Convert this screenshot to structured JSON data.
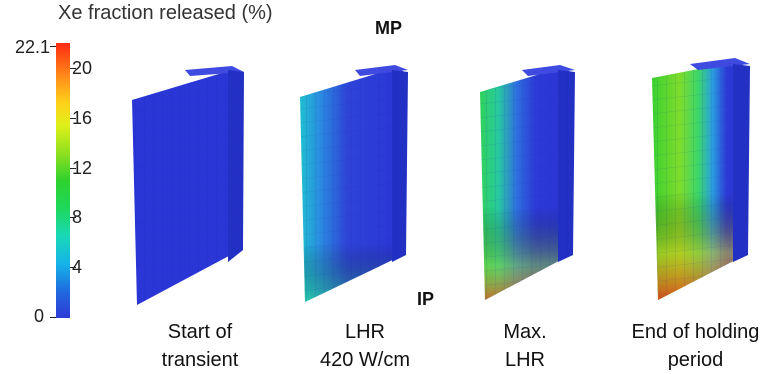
{
  "colorbar": {
    "title": "Xe fraction released (%)",
    "max_label": "22.1",
    "min_label": "0",
    "ticks": [
      "20",
      "16",
      "12",
      "8",
      "4"
    ],
    "colors": [
      "#2e3ad6",
      "#1f6de0",
      "#15b5e8",
      "#19d9b6",
      "#1ed85a",
      "#2fd12e",
      "#8fe01f",
      "#dff018",
      "#ffd21a",
      "#ff9a1a",
      "#ff5a14",
      "#ff2a12"
    ]
  },
  "position_labels": {
    "top": "MP",
    "bottom": "IP"
  },
  "stages": [
    {
      "line1": "Start of",
      "line2": "transient"
    },
    {
      "line1": "LHR",
      "line2": "420 W/cm"
    },
    {
      "line1": "Max.",
      "line2": "LHR"
    },
    {
      "line1": "End of holding",
      "line2": "period"
    }
  ]
}
